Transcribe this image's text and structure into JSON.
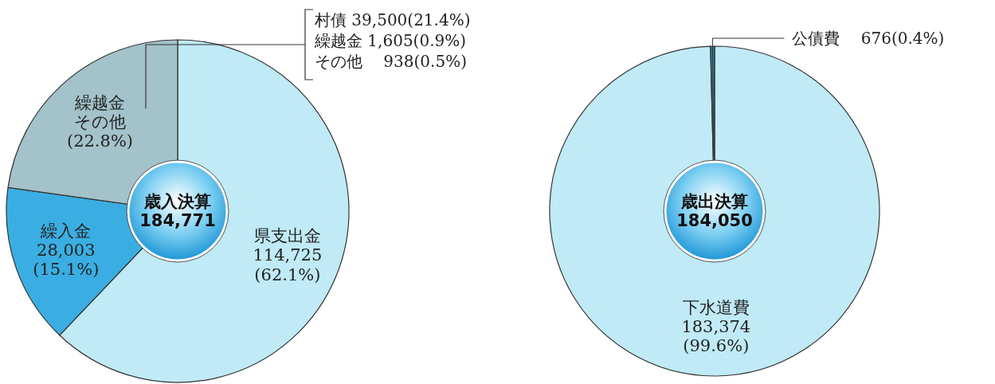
{
  "chart_data": [
    {
      "type": "pie",
      "title": "歳入決算",
      "subtitle": "184,771",
      "categories": [
        "県支出金",
        "繰入金",
        "繰越金その他"
      ],
      "values": [
        62.1,
        15.1,
        22.8
      ],
      "colors": [
        "#bfeaf6",
        "#3aaee2",
        "#a3c2ca"
      ],
      "value_labels": [
        "114,725\n(62.1%)",
        "28,003\n(15.1%)",
        "(22.8%)"
      ],
      "annotations": [
        "村債 39,500(21.4%)",
        "繰越金 1,605(0.9%)",
        "その他　 938(0.5%)"
      ]
    },
    {
      "type": "pie",
      "title": "歳出決算",
      "subtitle": "184,050",
      "categories": [
        "下水道費",
        "公債費"
      ],
      "values": [
        99.6,
        0.4
      ],
      "colors": [
        "#bfeaf6",
        "#2f7f9c"
      ],
      "value_labels": [
        "183,374\n(99.6%)",
        "676(0.4%)"
      ]
    }
  ]
}
